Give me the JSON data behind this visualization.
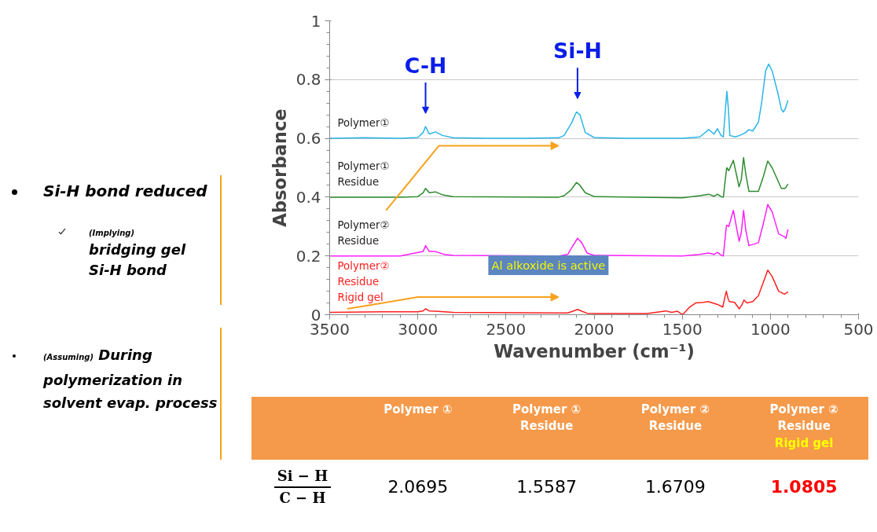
{
  "chart_data": {
    "type": "line",
    "xlabel": "Wavenumber (cm⁻¹)",
    "ylabel": "Absorbance",
    "xlim": [
      3500,
      500
    ],
    "xticks": [
      3500,
      3000,
      2500,
      2000,
      1500,
      1000,
      500
    ],
    "ylim": [
      0,
      1
    ],
    "yticks": [
      0,
      0.2,
      0.4,
      0.6,
      0.8,
      1
    ],
    "grid": "y",
    "marker": "none",
    "line_style": "solid",
    "x": [
      3500,
      3300,
      3100,
      3000,
      2970,
      2956,
      2935,
      2900,
      2860,
      2800,
      2600,
      2400,
      2200,
      2170,
      2130,
      2100,
      2080,
      2050,
      2000,
      1800,
      1600,
      1500,
      1400,
      1380,
      1350,
      1320,
      1300,
      1280,
      1267,
      1255,
      1247,
      1238,
      1230,
      1200,
      1174,
      1140,
      1122,
      1100,
      1068,
      1050,
      1027,
      1010,
      990,
      960,
      938,
      926,
      916,
      900
    ],
    "series": [
      {
        "name": "Polymer①",
        "color": "#2ab5e8",
        "values": [
          0.6,
          0.602,
          0.6,
          0.603,
          0.62,
          0.64,
          0.615,
          0.622,
          0.61,
          0.602,
          0.6,
          0.6,
          0.602,
          0.61,
          0.65,
          0.69,
          0.68,
          0.62,
          0.603,
          0.6,
          0.6,
          0.6,
          0.605,
          0.615,
          0.63,
          0.615,
          0.633,
          0.61,
          0.605,
          0.7,
          0.76,
          0.7,
          0.61,
          0.605,
          0.61,
          0.62,
          0.63,
          0.625,
          0.655,
          0.72,
          0.83,
          0.853,
          0.83,
          0.76,
          0.7,
          0.69,
          0.7,
          0.73
        ]
      },
      {
        "name": "Polymer①\nResidue",
        "color": "#2e8b2e",
        "x": [
          3500,
          3100,
          3000,
          2970,
          2956,
          2935,
          2900,
          2860,
          2800,
          2200,
          2170,
          2130,
          2100,
          2080,
          2050,
          2000,
          1500,
          1400,
          1350,
          1320,
          1300,
          1280,
          1267,
          1250,
          1247,
          1236,
          1210,
          1190,
          1178,
          1165,
          1152,
          1140,
          1122,
          1068,
          1040,
          1015,
          990,
          960,
          938,
          916,
          900
        ],
        "values": [
          0.4,
          0.4,
          0.402,
          0.415,
          0.43,
          0.415,
          0.418,
          0.408,
          0.402,
          0.4,
          0.405,
          0.425,
          0.45,
          0.44,
          0.415,
          0.402,
          0.398,
          0.405,
          0.41,
          0.403,
          0.41,
          0.402,
          0.4,
          0.49,
          0.5,
          0.49,
          0.525,
          0.47,
          0.435,
          0.46,
          0.535,
          0.48,
          0.42,
          0.42,
          0.47,
          0.523,
          0.5,
          0.46,
          0.43,
          0.43,
          0.445
        ]
      },
      {
        "name": "Polymer②\nResidue",
        "color": "#ff1fff",
        "x": [
          3500,
          3100,
          2970,
          2956,
          2935,
          2900,
          2850,
          2800,
          2200,
          2150,
          2120,
          2094,
          2070,
          2040,
          2000,
          1500,
          1400,
          1350,
          1320,
          1300,
          1280,
          1267,
          1250,
          1247,
          1236,
          1210,
          1190,
          1177,
          1165,
          1152,
          1140,
          1122,
          1068,
          1040,
          1015,
          990,
          953,
          920,
          912,
          900
        ],
        "values": [
          0.2,
          0.2,
          0.215,
          0.235,
          0.215,
          0.215,
          0.205,
          0.202,
          0.2,
          0.205,
          0.235,
          0.26,
          0.245,
          0.21,
          0.202,
          0.2,
          0.205,
          0.21,
          0.205,
          0.212,
          0.203,
          0.2,
          0.3,
          0.305,
          0.3,
          0.355,
          0.29,
          0.25,
          0.28,
          0.355,
          0.29,
          0.235,
          0.245,
          0.31,
          0.375,
          0.35,
          0.275,
          0.265,
          0.26,
          0.29
        ]
      },
      {
        "name": "Polymer②\nResidue\nRigid gel",
        "color": "#ff2020",
        "x": [
          3500,
          3200,
          3000,
          2970,
          2956,
          2935,
          2900,
          2800,
          2200,
          2150,
          2120,
          2094,
          2070,
          2040,
          2000,
          1700,
          1593,
          1560,
          1527,
          1498,
          1460,
          1424,
          1380,
          1353,
          1300,
          1270,
          1258,
          1250,
          1240,
          1233,
          1203,
          1177,
          1160,
          1150,
          1133,
          1100,
          1068,
          1040,
          1015,
          990,
          953,
          920,
          900
        ],
        "values": [
          0.008,
          0.01,
          0.01,
          0.013,
          0.02,
          0.013,
          0.012,
          0.008,
          0.006,
          0.006,
          0.012,
          0.018,
          0.012,
          0.005,
          0.004,
          0.004,
          0.013,
          0.008,
          0.012,
          0.0,
          0.025,
          0.04,
          0.042,
          0.045,
          0.035,
          0.026,
          0.06,
          0.08,
          0.055,
          0.045,
          0.042,
          0.02,
          0.035,
          0.05,
          0.04,
          0.045,
          0.065,
          0.11,
          0.152,
          0.13,
          0.08,
          0.07,
          0.078
        ]
      }
    ],
    "annotations": [
      {
        "text": "C-H",
        "x": 2956,
        "y": 0.64
      },
      {
        "text": "Si-H",
        "x": 2094,
        "y": 0.69
      },
      "Al alkoxide is active",
      "Si-H bond reduced",
      "(Implying)",
      "bridging gel Si-H bond",
      "(Assuming)",
      "During polymerization in solvent evap. process",
      "Polymer ①",
      "Polymer ①\nResidue",
      "Polymer ②\nResidue",
      "Polymer ②\nResidue\nRigid gel",
      "Si − H",
      "C − H",
      "2.0695",
      "1.5587",
      "1.6709",
      "1.0805"
    ]
  }
}
